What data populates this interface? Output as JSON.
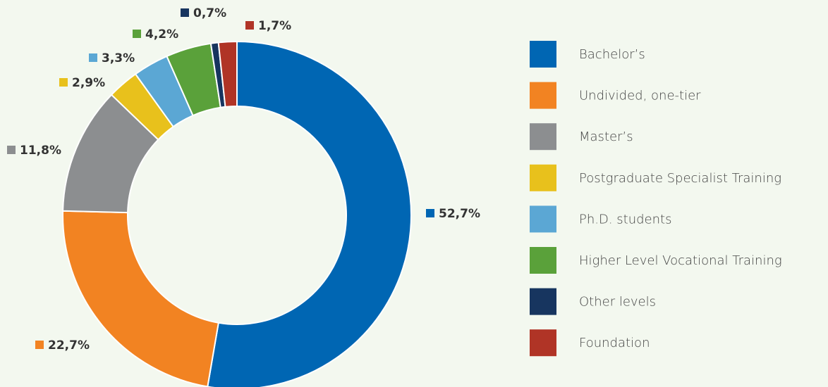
{
  "chart_data": {
    "type": "donut",
    "categories": [
      "Bachelor’s",
      "Undivided, one-tier",
      "Master’s",
      "Postgraduate Specialist Training",
      "Ph.D. students",
      "Higher Level Vocational Training",
      "Other levels",
      "Foundation"
    ],
    "values": [
      52.7,
      22.7,
      11.8,
      2.9,
      3.3,
      4.2,
      0.7,
      1.7
    ],
    "value_labels": [
      "52,7%",
      "22,7%",
      "11,8%",
      "2,9%",
      "3,3%",
      "4,2%",
      "0,7%",
      "1,7%"
    ],
    "colors": [
      "#0066b3",
      "#f28322",
      "#8c8e90",
      "#e8c11c",
      "#5ba7d4",
      "#5aa13a",
      "#17355f",
      "#b03426"
    ]
  }
}
